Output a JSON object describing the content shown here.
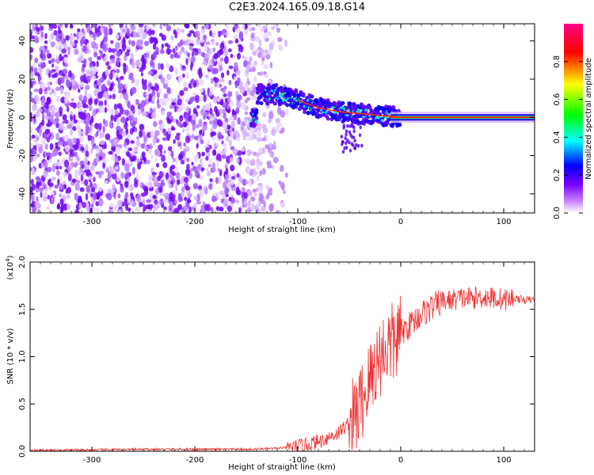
{
  "title": "C2E3.2024.165.09.18.G14",
  "chart_data": [
    {
      "type": "heatmap",
      "xlabel": "Height of straight line (km)",
      "ylabel": "Frequency (Hz)",
      "xlim": [
        -360,
        130
      ],
      "ylim": [
        -50,
        49
      ],
      "x_ticks": [
        -300,
        -200,
        -100,
        0,
        100
      ],
      "y_ticks": [
        -40,
        -20,
        0,
        20,
        40
      ],
      "colorbar": {
        "label": "Normalized spectral amplitude",
        "range": [
          0,
          1
        ],
        "ticks": [
          0.0,
          0.2,
          0.4,
          0.6,
          0.8
        ],
        "colors": [
          "#ffffff",
          "#cc88ff",
          "#7a00ff",
          "#0000ff",
          "#00ffff",
          "#00ff00",
          "#ffff00",
          "#ff0000",
          "#ff00aa"
        ]
      },
      "ridge": [
        {
          "x": -140,
          "f": 12
        },
        {
          "x": -120,
          "f": 12
        },
        {
          "x": -100,
          "f": 9
        },
        {
          "x": -80,
          "f": 5
        },
        {
          "x": -60,
          "f": 3
        },
        {
          "x": -40,
          "f": 2
        },
        {
          "x": -20,
          "f": 1
        },
        {
          "x": 0,
          "f": 0
        },
        {
          "x": 130,
          "f": 0
        }
      ],
      "grid": false
    },
    {
      "type": "line",
      "xlabel": "Height of straight line (km)",
      "ylabel": "SNR (10 * v/v)",
      "y_multiplier_label": "(x10",
      "y_multiplier_exp": "4",
      "y_multiplier_close": ")",
      "xlim": [
        -360,
        130
      ],
      "ylim": [
        0,
        2.0
      ],
      "x_ticks": [
        -300,
        -200,
        -100,
        0,
        100
      ],
      "y_ticks": [
        0.0,
        0.5,
        1.0,
        1.5,
        2.0
      ],
      "y_tick_labels": [
        "0.0",
        "0.5",
        "1.0",
        "1.5",
        "2.0"
      ],
      "series": [
        {
          "color": "#ee3333",
          "x": [
            -360,
            -300,
            -250,
            -200,
            -150,
            -120,
            -100,
            -80,
            -60,
            -45,
            -35,
            -25,
            -15,
            -5,
            0,
            10,
            20,
            30,
            40,
            50,
            60,
            70,
            80,
            90,
            100,
            110,
            120,
            130
          ],
          "y": [
            0.01,
            0.015,
            0.02,
            0.02,
            0.02,
            0.03,
            0.05,
            0.1,
            0.2,
            0.35,
            0.6,
            0.9,
            1.1,
            1.15,
            1.25,
            1.35,
            1.45,
            1.52,
            1.58,
            1.6,
            1.62,
            1.62,
            1.63,
            1.62,
            1.6,
            1.62,
            1.6,
            1.6
          ]
        }
      ],
      "grid": false
    }
  ]
}
